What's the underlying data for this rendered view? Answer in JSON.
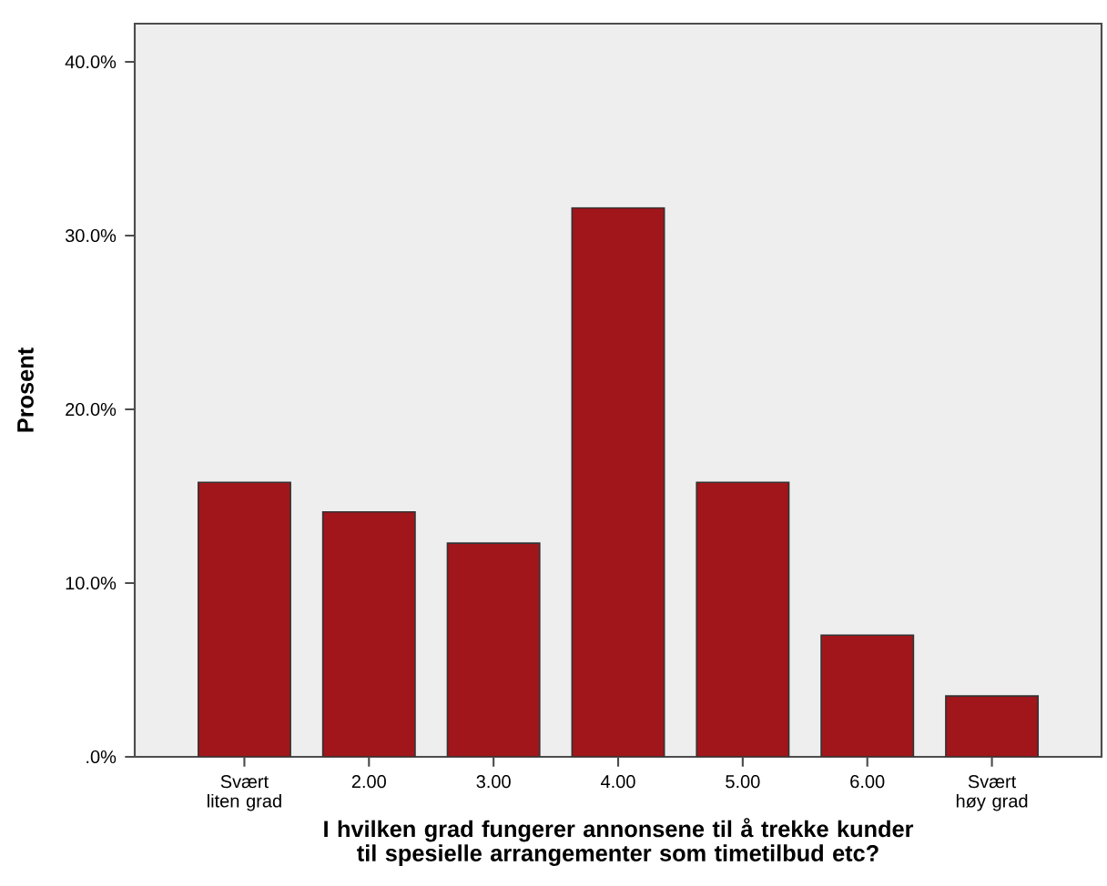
{
  "chart_data": {
    "type": "bar",
    "xlabel": "I hvilken grad fungerer annonsene til å trekke kunder til spesielle arrangementer som timetilbud etc?",
    "ylabel": "Prosent",
    "categories": [
      "Svært liten grad",
      "2.00",
      "3.00",
      "4.00",
      "5.00",
      "6.00",
      "Svært høy grad"
    ],
    "values": [
      15.8,
      14.1,
      12.3,
      31.6,
      15.8,
      7.0,
      3.5
    ],
    "color": "#a0161a",
    "ylim": [
      0,
      42.2
    ],
    "yticks": [
      {
        "value": 0,
        "label": ".0%"
      },
      {
        "value": 10,
        "label": "10.0%"
      },
      {
        "value": 20,
        "label": "20.0%"
      },
      {
        "value": 30,
        "label": "30.0%"
      },
      {
        "value": 40,
        "label": "40.0%"
      }
    ]
  }
}
